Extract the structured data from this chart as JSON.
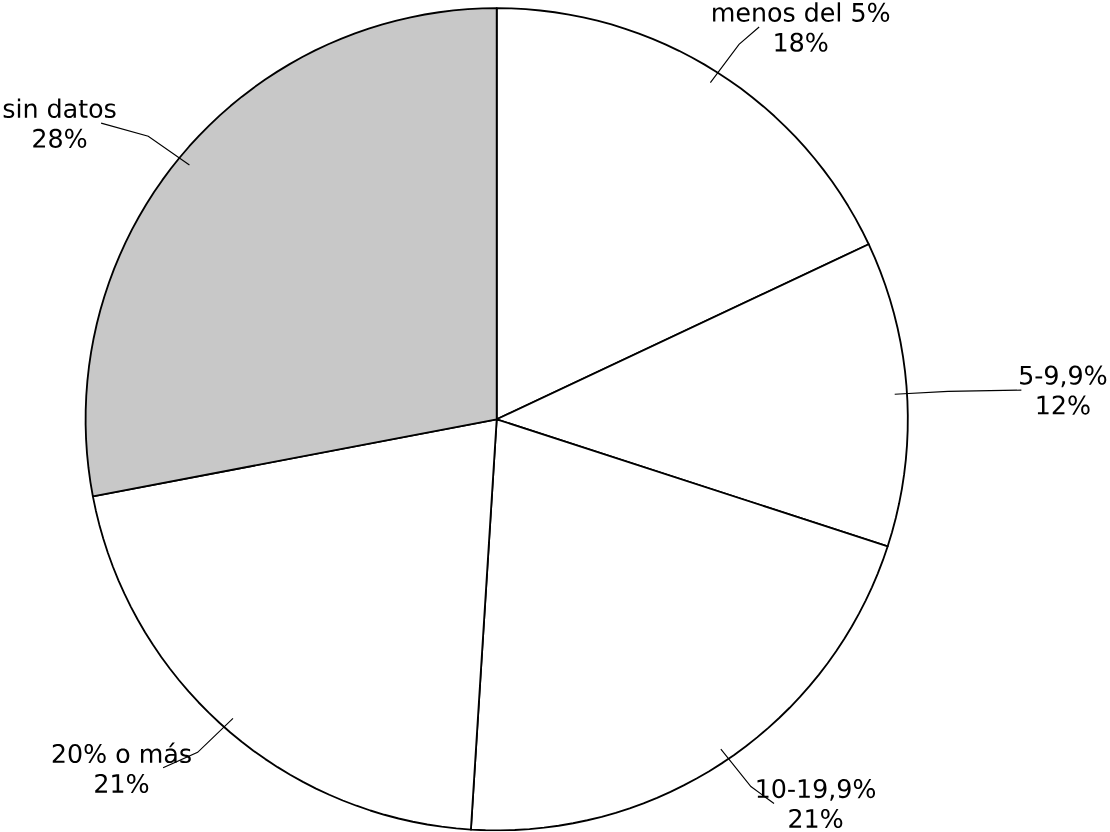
{
  "chart_data": {
    "type": "pie",
    "categories": [
      "menos del 5%",
      "5-9,9%",
      "10-19,9%",
      "20% o más",
      "sin datos"
    ],
    "values": [
      18,
      12,
      21,
      21,
      28
    ],
    "value_labels": [
      "18%",
      "12%",
      "21%",
      "21%",
      "28%"
    ],
    "colors": [
      "#ffffff",
      "#ffffff",
      "#ffffff",
      "#ffffff",
      "#c8c8c8"
    ]
  }
}
